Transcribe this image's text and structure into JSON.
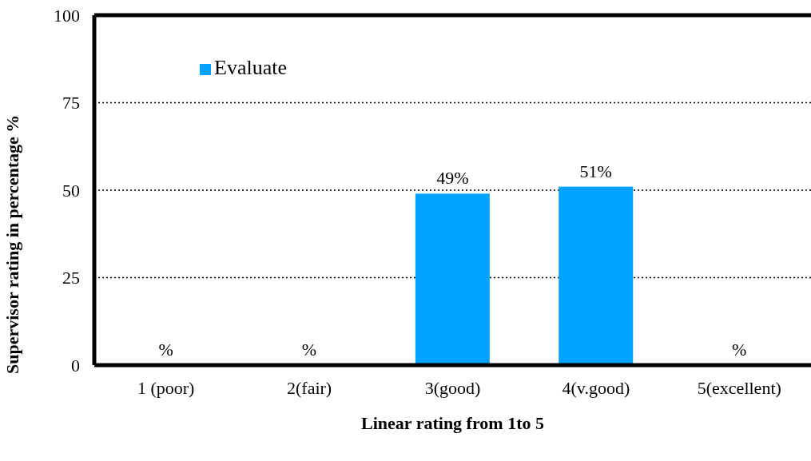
{
  "chart_data": {
    "type": "bar",
    "xlabel": "Linear rating from 1to 5",
    "ylabel": "Supervisor rating in percentage %",
    "categories": [
      "1 (poor)",
      "2(fair)",
      "3(good)",
      "4(v.good)",
      "5(excellent)"
    ],
    "series": [
      {
        "name": "Evaluate",
        "color": "#00a2ff",
        "values": [
          0,
          0,
          49,
          51,
          0
        ],
        "value_labels": [
          "%",
          "%",
          "49%",
          "51%",
          "%"
        ]
      }
    ],
    "ylim": [
      0,
      100
    ],
    "yticks": [
      0,
      25,
      50,
      75,
      100
    ],
    "grid": "y",
    "line_style": "dotted",
    "legend": "top left"
  }
}
